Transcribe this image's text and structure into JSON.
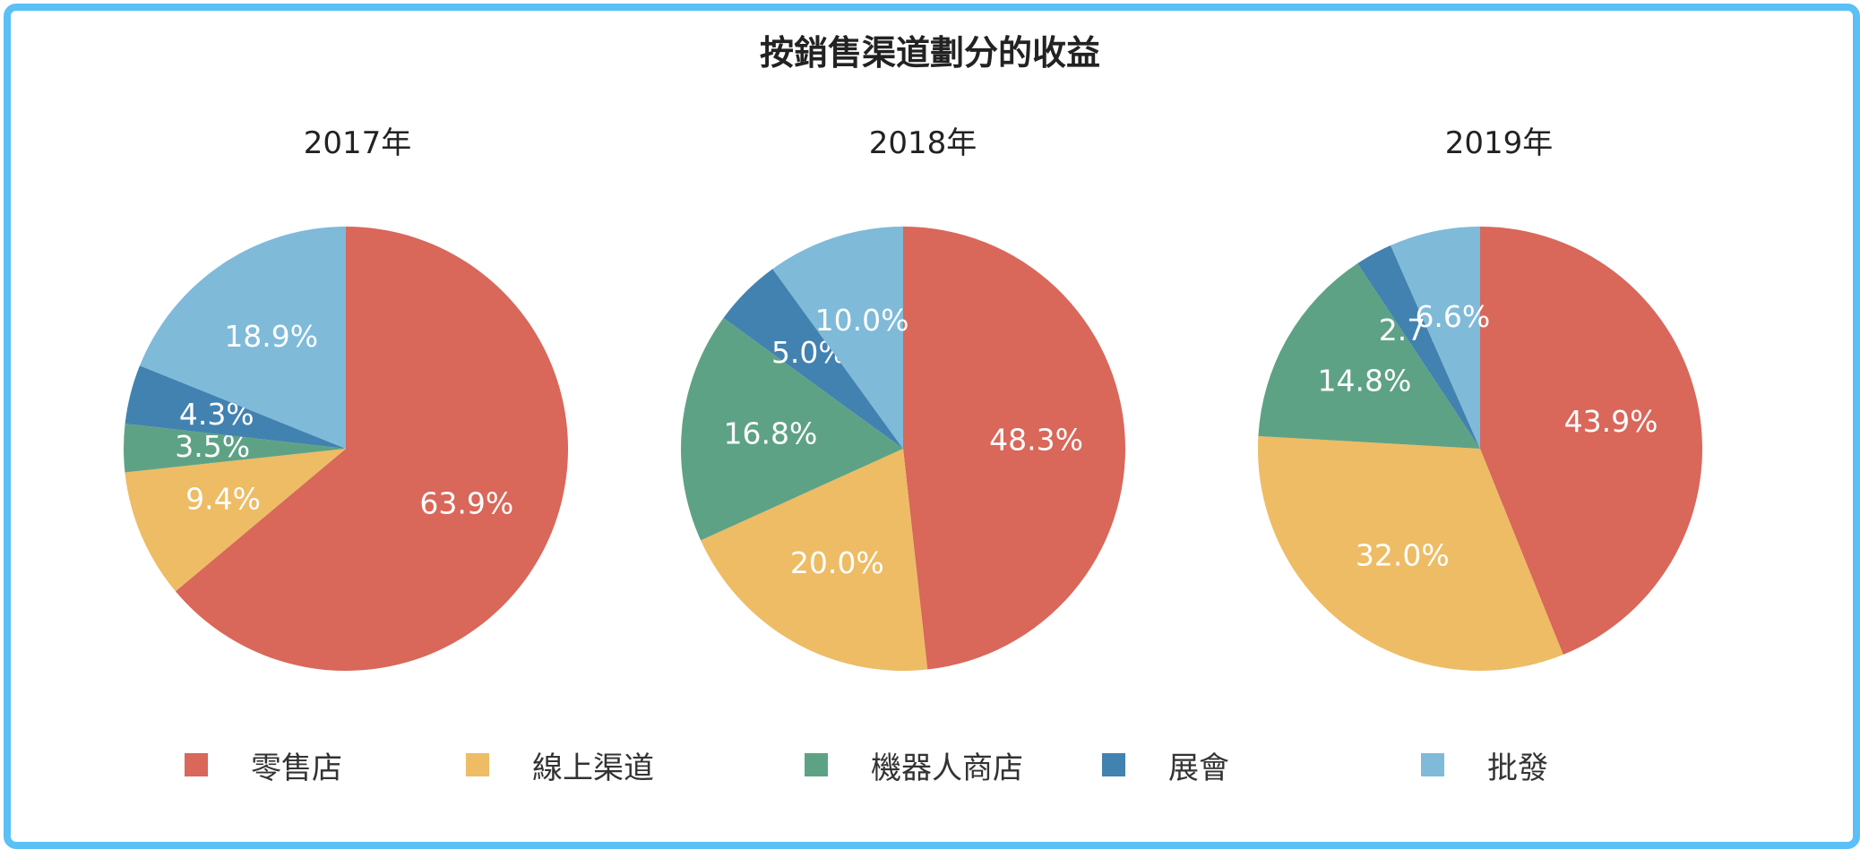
{
  "chart_data": {
    "type": "pie",
    "title": "按銷售渠道劃分的收益",
    "categories": [
      "零售店",
      "線上渠道",
      "機器人商店",
      "展會",
      "批發"
    ],
    "colors": [
      "#d9675a",
      "#edbc65",
      "#5ea285",
      "#4282b0",
      "#7fbad9"
    ],
    "pies": [
      {
        "name": "2017年",
        "values": [
          63.9,
          9.4,
          3.5,
          4.3,
          18.9
        ],
        "labels": [
          "63.9%",
          "9.4%",
          "3.5%",
          "4.3%",
          "18.9%"
        ]
      },
      {
        "name": "2018年",
        "values": [
          48.3,
          20.0,
          16.8,
          5.0,
          10.0
        ],
        "labels": [
          "48.3%",
          "20.0%",
          "16.8%",
          "5.0%",
          "10.0%"
        ]
      },
      {
        "name": "2019年",
        "values": [
          43.9,
          32.0,
          14.8,
          2.7,
          6.6
        ],
        "labels": [
          "43.9%",
          "32.0%",
          "14.8%",
          "2.7%",
          "6.6%"
        ]
      }
    ],
    "legend_position": "bottom"
  }
}
